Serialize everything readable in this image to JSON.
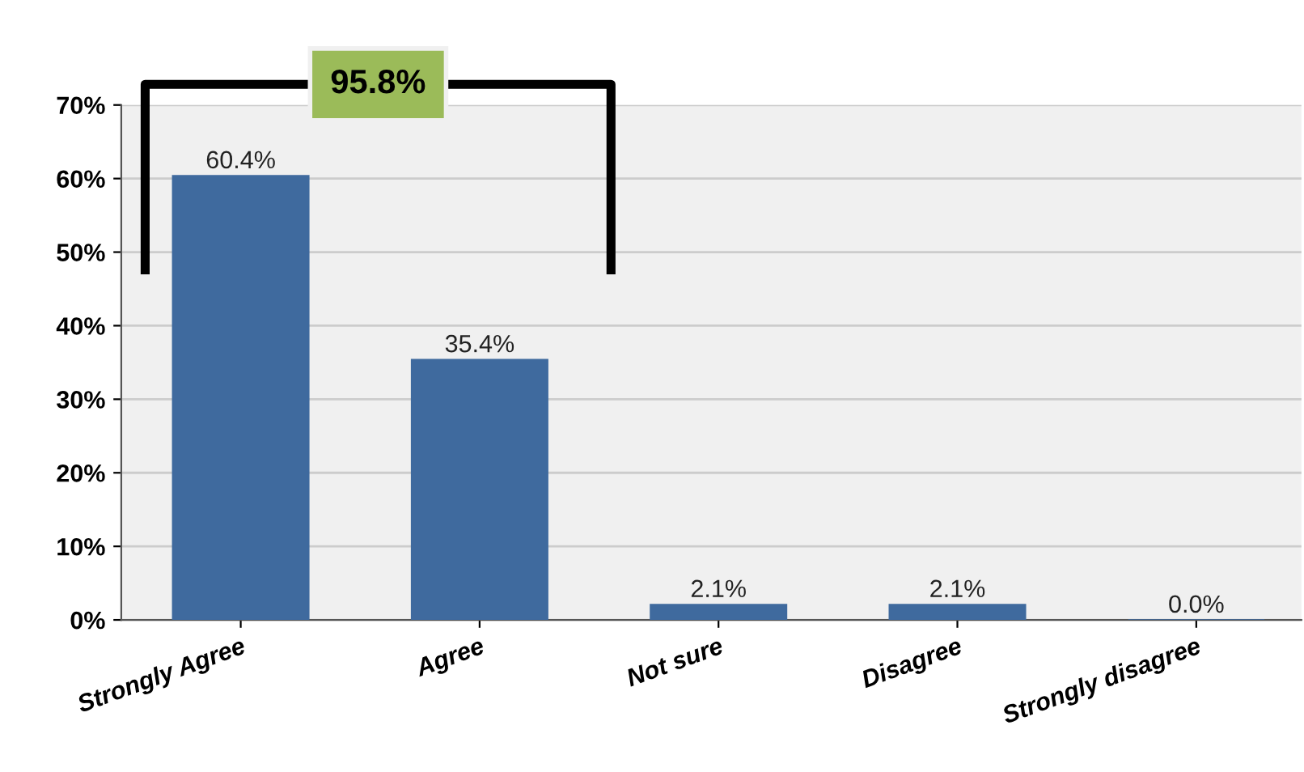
{
  "chart_data": {
    "type": "bar",
    "categories": [
      "Strongly Agree",
      "Agree",
      "Not sure",
      "Disagree",
      "Strongly disagree"
    ],
    "values": [
      60.4,
      35.4,
      2.1,
      2.1,
      0.0
    ],
    "value_labels": [
      "60.4%",
      "35.4%",
      "2.1%",
      "2.1%",
      "0.0%"
    ],
    "color": "#3f6a9e",
    "ylim": [
      0,
      70
    ],
    "yticks": [
      {
        "value": 0,
        "label": "0%"
      },
      {
        "value": 10,
        "label": "10%"
      },
      {
        "value": 20,
        "label": "20%"
      },
      {
        "value": 30,
        "label": "30%"
      },
      {
        "value": 40,
        "label": "40%"
      },
      {
        "value": 50,
        "label": "50%"
      },
      {
        "value": 60,
        "label": "60%"
      },
      {
        "value": 70,
        "label": "70%"
      }
    ],
    "grid": "y",
    "annotations": [
      "95.8%"
    ]
  }
}
